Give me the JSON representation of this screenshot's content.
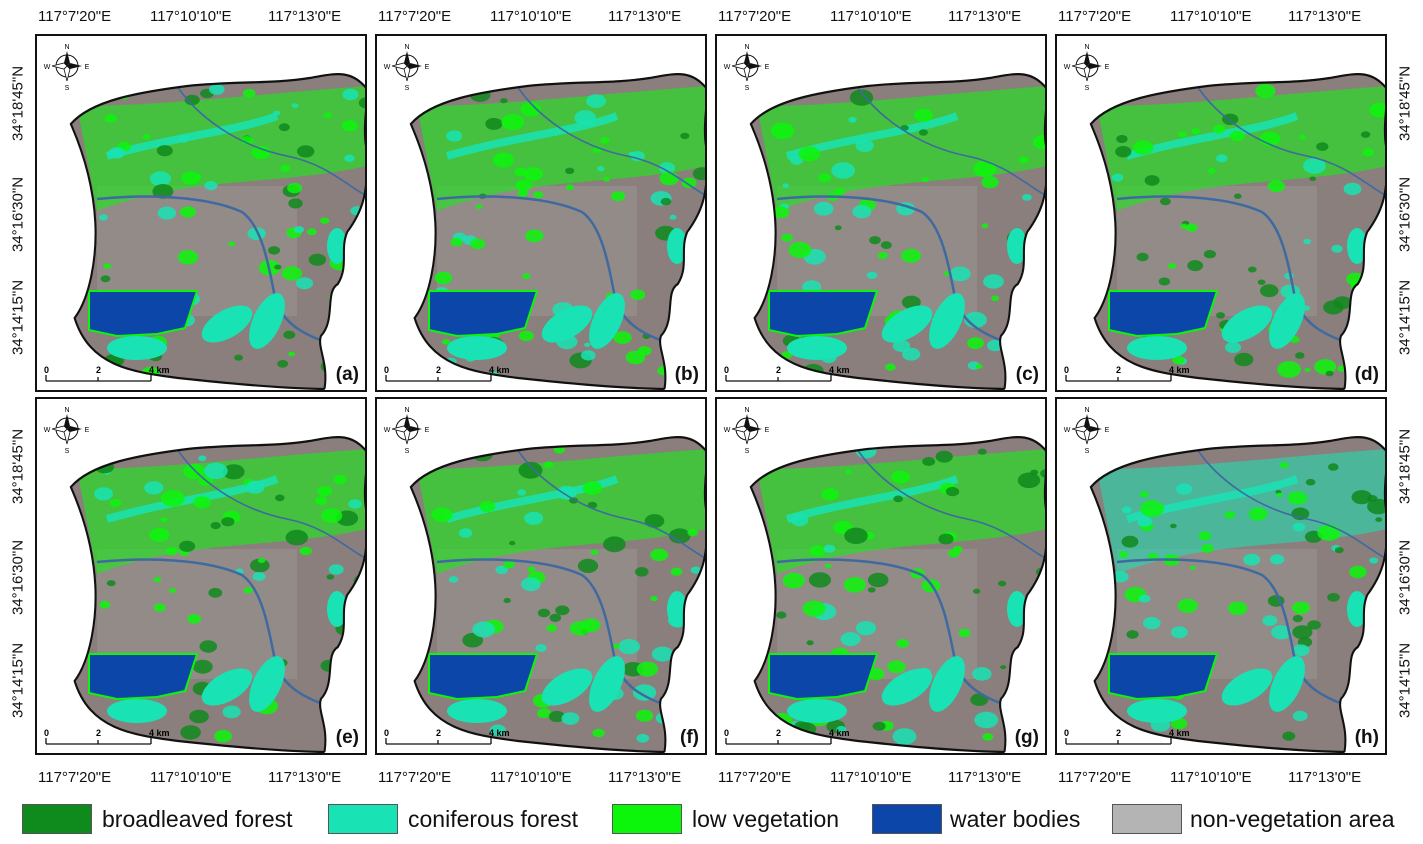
{
  "longitude_labels": [
    "117°7'20\"E",
    "117°10'10\"E",
    "117°13'0\"E"
  ],
  "latitude_labels": [
    "34°18'45\"N",
    "34°16'30\"N",
    "34°14'15\"N"
  ],
  "compass": {
    "n": "N",
    "s": "S",
    "e": "E",
    "w": "W"
  },
  "scale_bar": {
    "ticks": [
      "0",
      "2",
      "4 km"
    ]
  },
  "panels": [
    {
      "label": "(a)"
    },
    {
      "label": "(b)"
    },
    {
      "label": "(c)"
    },
    {
      "label": "(d)"
    },
    {
      "label": "(e)"
    },
    {
      "label": "(f)"
    },
    {
      "label": "(g)"
    },
    {
      "label": "(h)"
    }
  ],
  "legend": [
    {
      "label": "broadleaved forest",
      "color": "#0f8a1d"
    },
    {
      "label": "coniferous forest",
      "color": "#19e3b4"
    },
    {
      "label": "low vegetation",
      "color": "#0cf60c"
    },
    {
      "label": "water bodies",
      "color": "#0b46a8"
    },
    {
      "label": "non-vegetation area",
      "color": "#b4b4b4"
    }
  ]
}
